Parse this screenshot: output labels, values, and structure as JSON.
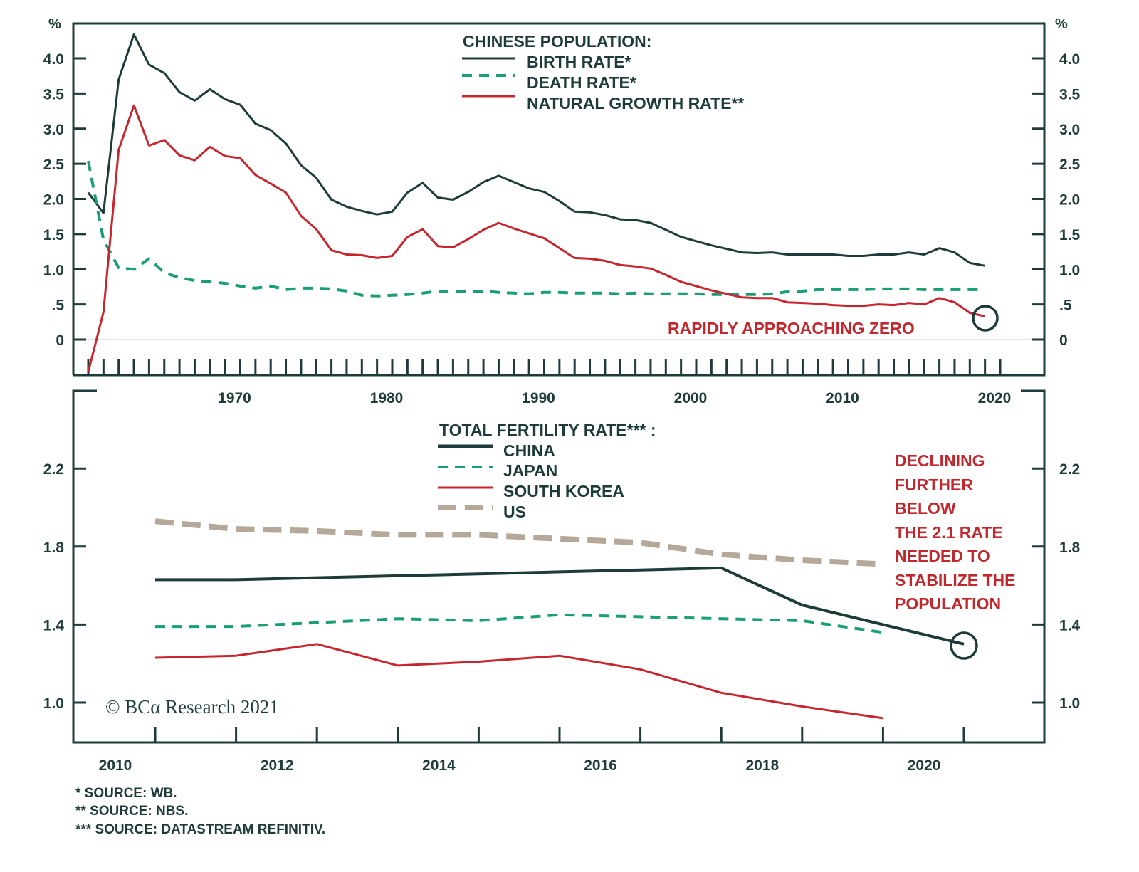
{
  "colors": {
    "axis": "#1d3b3a",
    "birth": "#1d3b3a",
    "death": "#1a9e78",
    "growth": "#c8262e",
    "china": "#1d3b3a",
    "japan": "#1a9e78",
    "korea": "#c8262e",
    "us": "#b5a898",
    "annotation": "#c0282e"
  },
  "chart_data": [
    {
      "type": "line",
      "title": "CHINESE POPULATION:",
      "ylabel_left": "%",
      "ylabel_right": "%",
      "ylim": [
        -0.5,
        4.5
      ],
      "yticks": [
        "4.0",
        "3.5",
        "3.0",
        "2.5",
        "2.0",
        "1.5",
        "1.0",
        ".5",
        "0"
      ],
      "ytick_values": [
        4.0,
        3.5,
        3.0,
        2.5,
        2.0,
        1.5,
        1.0,
        0.5,
        0
      ],
      "xticks": [
        "1970",
        "1980",
        "1990",
        "2000",
        "2010",
        "2020"
      ],
      "xtick_values": [
        1970,
        1980,
        1990,
        2000,
        2010,
        2020
      ],
      "xlim": [
        1960,
        2020
      ],
      "grid": false,
      "legend": "top-center",
      "annotation": "RAPIDLY APPROACHING ZERO",
      "x_start": 1960,
      "series": [
        {
          "name": "BIRTH RATE*",
          "style": "solid",
          "values": [
            2.09,
            1.8,
            3.7,
            4.34,
            3.91,
            3.79,
            3.52,
            3.4,
            3.56,
            3.42,
            3.34,
            3.07,
            2.98,
            2.79,
            2.48,
            2.3,
            1.99,
            1.89,
            1.83,
            1.78,
            1.82,
            2.09,
            2.23,
            2.02,
            1.99,
            2.1,
            2.24,
            2.33,
            2.24,
            2.15,
            2.1,
            1.97,
            1.82,
            1.81,
            1.77,
            1.71,
            1.7,
            1.66,
            1.56,
            1.46,
            1.4,
            1.34,
            1.29,
            1.24,
            1.23,
            1.24,
            1.21,
            1.21,
            1.21,
            1.21,
            1.19,
            1.19,
            1.21,
            1.21,
            1.24,
            1.21,
            1.3,
            1.24,
            1.09,
            1.05
          ]
        },
        {
          "name": "DEATH RATE*",
          "style": "dashed",
          "values": [
            2.54,
            1.42,
            1.02,
            1.0,
            1.15,
            0.95,
            0.88,
            0.84,
            0.82,
            0.8,
            0.76,
            0.73,
            0.76,
            0.71,
            0.73,
            0.73,
            0.72,
            0.69,
            0.63,
            0.62,
            0.63,
            0.64,
            0.66,
            0.69,
            0.68,
            0.68,
            0.69,
            0.67,
            0.66,
            0.65,
            0.67,
            0.67,
            0.66,
            0.66,
            0.66,
            0.65,
            0.66,
            0.65,
            0.65,
            0.65,
            0.65,
            0.64,
            0.64,
            0.64,
            0.64,
            0.65,
            0.68,
            0.69,
            0.71,
            0.71,
            0.71,
            0.71,
            0.72,
            0.72,
            0.72,
            0.71,
            0.71,
            0.71,
            0.71,
            0.71
          ]
        },
        {
          "name": "NATURAL GROWTH RATE**",
          "style": "solid",
          "values": [
            -0.46,
            0.39,
            2.7,
            3.33,
            2.76,
            2.84,
            2.62,
            2.55,
            2.74,
            2.61,
            2.58,
            2.34,
            2.22,
            2.09,
            1.76,
            1.57,
            1.27,
            1.21,
            1.2,
            1.16,
            1.19,
            1.46,
            1.57,
            1.33,
            1.31,
            1.43,
            1.56,
            1.66,
            1.58,
            1.51,
            1.44,
            1.3,
            1.16,
            1.15,
            1.12,
            1.06,
            1.04,
            1.01,
            0.92,
            0.82,
            0.76,
            0.7,
            0.65,
            0.6,
            0.59,
            0.59,
            0.53,
            0.52,
            0.51,
            0.49,
            0.48,
            0.48,
            0.5,
            0.49,
            0.52,
            0.5,
            0.59,
            0.53,
            0.38,
            0.33
          ]
        }
      ]
    },
    {
      "type": "line",
      "title": "TOTAL FERTILITY RATE*** :",
      "ylim": [
        0.8,
        2.4
      ],
      "yticks": [
        "2.2",
        "1.8",
        "1.4",
        "1.0"
      ],
      "ytick_values": [
        2.2,
        1.8,
        1.4,
        1.0
      ],
      "xticks": [
        "2010",
        "2012",
        "2014",
        "2016",
        "2018",
        "2020"
      ],
      "xtick_values": [
        2010,
        2012,
        2014,
        2016,
        2018,
        2020
      ],
      "grid": false,
      "legend": "top-center",
      "annotation": [
        "DECLINING",
        "FURTHER",
        "BELOW",
        "THE 2.1 RATE",
        "NEEDED TO",
        "STABILIZE THE",
        "POPULATION"
      ],
      "x": [
        2010,
        2011,
        2012,
        2013,
        2014,
        2015,
        2016,
        2017,
        2018,
        2019,
        2020
      ],
      "series": [
        {
          "name": "CHINA",
          "style": "solid",
          "values": [
            1.63,
            1.63,
            1.64,
            1.65,
            1.66,
            1.67,
            1.68,
            1.69,
            1.5,
            1.4,
            1.3
          ]
        },
        {
          "name": "JAPAN",
          "style": "dashed",
          "values": [
            1.39,
            1.39,
            1.41,
            1.43,
            1.42,
            1.45,
            1.44,
            1.43,
            1.42,
            1.36,
            null
          ]
        },
        {
          "name": "SOUTH KOREA",
          "style": "solid",
          "values": [
            1.23,
            1.24,
            1.3,
            1.19,
            1.21,
            1.24,
            1.17,
            1.05,
            0.98,
            0.92,
            null
          ]
        },
        {
          "name": "US",
          "style": "dashed",
          "values": [
            1.93,
            1.89,
            1.88,
            1.86,
            1.86,
            1.84,
            1.82,
            1.76,
            1.73,
            1.71,
            null
          ]
        }
      ]
    }
  ],
  "copyright": "© BCα Research 2021",
  "footnotes": [
    "*   SOURCE: WB.",
    "**  SOURCE: NBS.",
    "*** SOURCE: DATASTREAM REFINITIV."
  ]
}
